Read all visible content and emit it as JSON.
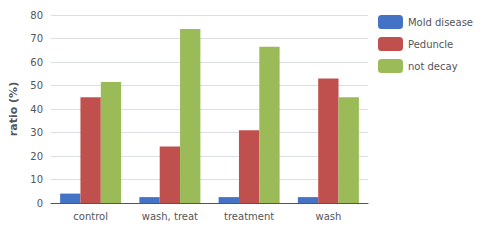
{
  "chart_data": {
    "type": "bar",
    "categories": [
      "control",
      "wash, treat",
      "treatment",
      "wash"
    ],
    "series": [
      {
        "name": "Mold disease",
        "color": "#4472C4",
        "values": [
          4,
          2.5,
          2.5,
          2.5
        ]
      },
      {
        "name": "Peduncle",
        "color": "#C0504D",
        "values": [
          45,
          24,
          31,
          53
        ]
      },
      {
        "name": "not decay",
        "color": "#9BBB59",
        "values": [
          51.5,
          74,
          66.5,
          45
        ]
      }
    ],
    "ylabel": "ratio (%)",
    "ylim": [
      0,
      80
    ],
    "yticks": [
      0,
      10,
      20,
      30,
      40,
      50,
      60,
      70,
      80
    ],
    "grid": true,
    "legend": "right"
  }
}
